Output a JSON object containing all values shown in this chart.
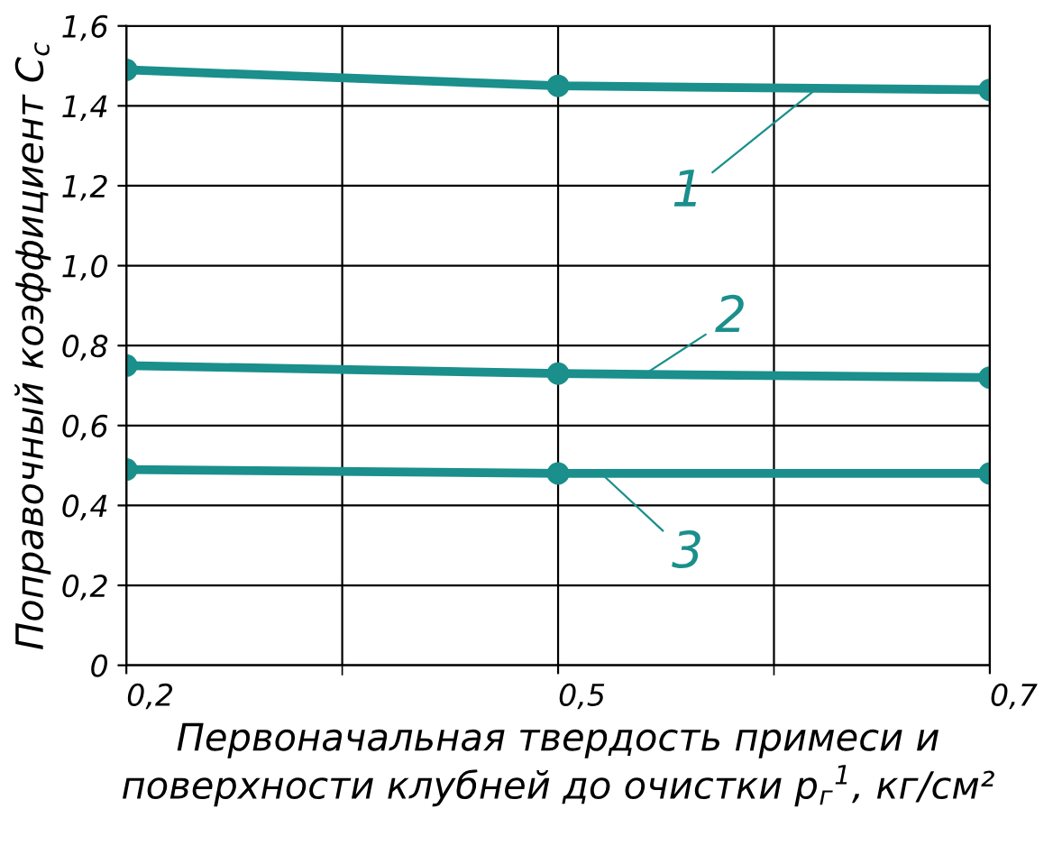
{
  "chart_data": {
    "type": "line",
    "xlabel": "Первоначальная твердость примеси и\nповерхности клубней до очистки p$_{г}$$^{1}$, кг/см²",
    "ylabel": "Поправочный коэффициент C$_{c}$",
    "categories": [
      "0,2",
      "0,5",
      "0,7"
    ],
    "series": [
      {
        "name": "1",
        "color": "#1a8f8c",
        "values": [
          1.49,
          1.45,
          1.44
        ]
      },
      {
        "name": "2",
        "color": "#1a8f8c",
        "values": [
          0.75,
          0.73,
          0.72
        ]
      },
      {
        "name": "3",
        "color": "#1a8f8c",
        "values": [
          0.49,
          0.48,
          0.48
        ]
      }
    ],
    "ylim": [
      0,
      1.6
    ],
    "yticks": [
      0,
      {
        "value": 0.2,
        "label": "0,2"
      },
      {
        "value": 0.4,
        "label": "0,4"
      },
      {
        "value": 0.6,
        "label": "0,6"
      },
      {
        "value": 0.8,
        "label": "0,8"
      },
      {
        "value": 1.0,
        "label": "1,0"
      },
      {
        "value": 1.2,
        "label": "1,2"
      },
      {
        "value": 1.4,
        "label": "1,4"
      },
      {
        "value": 1.6,
        "label": "1,6"
      }
    ],
    "grid": true,
    "marker": "circle",
    "line_style": "solid"
  }
}
